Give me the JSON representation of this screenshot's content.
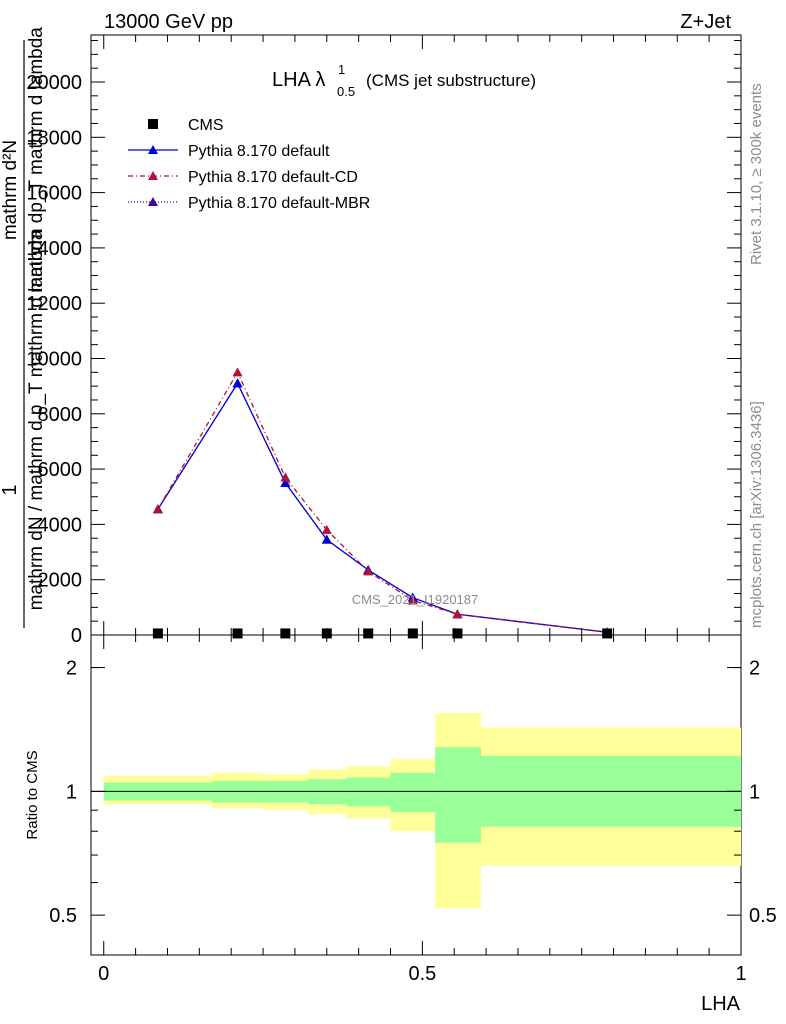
{
  "header": {
    "left": "13000 GeV pp",
    "right": "Z+Jet"
  },
  "title": {
    "main": "LHA λ",
    "sup": "1",
    "sub": "0.5",
    "note": "(CMS jet substructure)"
  },
  "side": {
    "rivet": "Rivet 3.1.10, ≥ 300k events",
    "site": "mcplots.cern.ch [arXiv:1306.3436]"
  },
  "watermark": "CMS_2021_I1920187",
  "legend": [
    {
      "label": "CMS",
      "marker": "square",
      "color": "#000000",
      "dash": ""
    },
    {
      "label": "Pythia 8.170 default",
      "marker": "triangle",
      "color": "#0000dd",
      "dash": ""
    },
    {
      "label": "Pythia 8.170 default-CD",
      "marker": "triangle",
      "color": "#b0103a",
      "dash": "5,3,1,3"
    },
    {
      "label": "Pythia 8.170 default-MBR",
      "marker": "triangle",
      "color": "#3a0aa0",
      "dash": "1,2"
    }
  ],
  "axes": {
    "ylabel_frac_top": "1",
    "ylabel_main": "mathrm dN / mathrm d p_T mathrm d lambda",
    "ylabel_sub_top": "mathrm d²N",
    "ylabel_sub_bottom": "mathrm dp_T mathrm d lambda",
    "xlabel": "LHA",
    "ratio_ylabel": "Ratio to CMS",
    "main_yticks": [
      "0",
      "2000",
      "4000",
      "6000",
      "8000",
      "10000",
      "12000",
      "14000",
      "16000",
      "18000",
      "20000"
    ],
    "ratio_yticks": [
      "0.5",
      "1",
      "2"
    ],
    "xticks": [
      "0",
      "0.5",
      "1"
    ]
  },
  "chart_data": [
    {
      "type": "line",
      "panel": "main",
      "xlabel": "LHA",
      "xlim": [
        -0.02,
        1.0
      ],
      "ylim": [
        0,
        21700
      ],
      "x": [
        0.085,
        0.21,
        0.285,
        0.35,
        0.415,
        0.485,
        0.555,
        0.79
      ],
      "series": [
        {
          "name": "CMS",
          "values": [
            20,
            20,
            20,
            20,
            20,
            20,
            20,
            20
          ]
        },
        {
          "name": "Pythia 8.170 default",
          "values": [
            4550,
            9100,
            5500,
            3450,
            2350,
            1350,
            750,
            100
          ]
        },
        {
          "name": "Pythia 8.170 default-CD",
          "values": [
            4550,
            9500,
            5700,
            3800,
            2300,
            1250,
            750,
            100
          ]
        },
        {
          "name": "Pythia 8.170 default-MBR",
          "values": [
            4550,
            9100,
            5500,
            3450,
            2350,
            1350,
            750,
            100
          ]
        }
      ]
    },
    {
      "type": "area",
      "panel": "ratio",
      "ylabel": "Ratio to CMS",
      "ylim": [
        0.4,
        2.4
      ],
      "ylog": true,
      "bins": [
        {
          "lo": 0.0,
          "hi": 0.17,
          "inner": [
            0.95,
            1.05
          ],
          "outer": [
            0.93,
            1.09
          ]
        },
        {
          "lo": 0.17,
          "hi": 0.25,
          "inner": [
            0.94,
            1.06
          ],
          "outer": [
            0.91,
            1.11
          ]
        },
        {
          "lo": 0.25,
          "hi": 0.32,
          "inner": [
            0.94,
            1.06
          ],
          "outer": [
            0.9,
            1.1
          ]
        },
        {
          "lo": 0.32,
          "hi": 0.38,
          "inner": [
            0.93,
            1.07
          ],
          "outer": [
            0.88,
            1.13
          ]
        },
        {
          "lo": 0.38,
          "hi": 0.45,
          "inner": [
            0.92,
            1.08
          ],
          "outer": [
            0.86,
            1.15
          ]
        },
        {
          "lo": 0.45,
          "hi": 0.52,
          "inner": [
            0.89,
            1.11
          ],
          "outer": [
            0.8,
            1.2
          ]
        },
        {
          "lo": 0.52,
          "hi": 0.592,
          "inner": [
            0.75,
            1.28
          ],
          "outer": [
            0.52,
            1.55
          ]
        },
        {
          "lo": 0.592,
          "hi": 1.0,
          "inner": [
            0.82,
            1.22
          ],
          "outer": [
            0.66,
            1.43
          ]
        }
      ]
    }
  ]
}
